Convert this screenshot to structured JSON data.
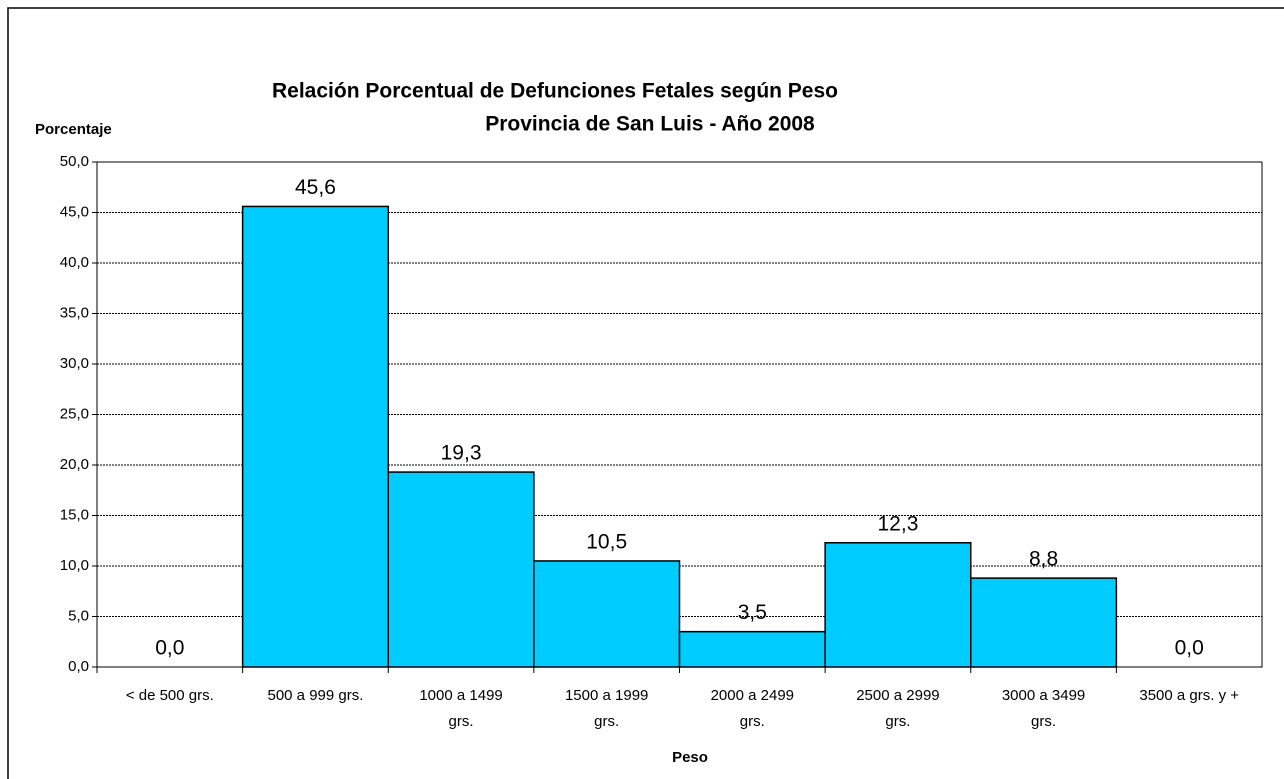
{
  "chart_data": {
    "type": "bar",
    "title": "Relación Porcentual de Defunciones Fetales según Peso",
    "subtitle": "Provincia de San Luis - Año 2008",
    "y_label": "Porcentaje",
    "x_label": "Peso",
    "categories": [
      "< de 500 grs.",
      "500 a 999 grs.",
      "1000 a 1499 grs.",
      "1500 a 1999 grs.",
      "2000 a 2499 grs.",
      "2500 a 2999 grs.",
      "3000 a 3499 grs.",
      "3500 a grs. y +"
    ],
    "values": [
      0.0,
      45.6,
      19.3,
      10.5,
      3.5,
      12.3,
      8.8,
      0.0
    ],
    "value_labels": [
      "0,0",
      "45,6",
      "19,3",
      "10,5",
      "3,5",
      "12,3",
      "8,8",
      "0,0"
    ],
    "color": "#00ccff",
    "ylim": [
      0,
      50
    ],
    "yticks": [
      {
        "value": 0,
        "label": "0,0"
      },
      {
        "value": 5,
        "label": "5,0"
      },
      {
        "value": 10,
        "label": "10,0"
      },
      {
        "value": 15,
        "label": "15,0"
      },
      {
        "value": 20,
        "label": "20,0"
      },
      {
        "value": 25,
        "label": "25,0"
      },
      {
        "value": 30,
        "label": "30,0"
      },
      {
        "value": 35,
        "label": "35,0"
      },
      {
        "value": 40,
        "label": "40,0"
      },
      {
        "value": 45,
        "label": "45,0"
      },
      {
        "value": 50,
        "label": "50,0"
      }
    ],
    "grid": true
  }
}
